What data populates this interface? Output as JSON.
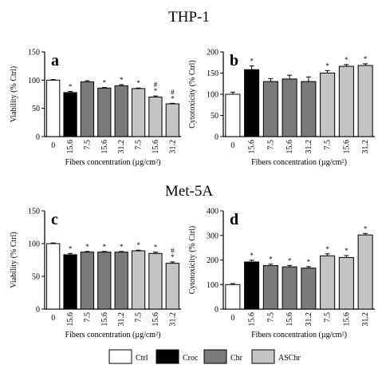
{
  "section_titles": [
    "THP-1",
    "Met-5A"
  ],
  "xlabel": "Fibers concentration (µg/cm²)",
  "legend": [
    {
      "label": "Ctrl",
      "color": "#ffffff"
    },
    {
      "label": "Croc",
      "color": "#000000"
    },
    {
      "label": "Chr",
      "color": "#7a7a7a"
    },
    {
      "label": "ASChr",
      "color": "#c4c4c4"
    }
  ],
  "chart_data": [
    {
      "type": "bar",
      "panel_letter": "a",
      "ylabel": "Viability (% Ctrl)",
      "ylim": [
        0,
        150
      ],
      "yticks": [
        0,
        50,
        100,
        150
      ],
      "categories": [
        "0",
        "15.6",
        "7.5",
        "15.6",
        "31.2",
        "7.5",
        "15.6",
        "31.2"
      ],
      "groups": [
        "Ctrl",
        "Croc",
        "Chr",
        "Chr",
        "Chr",
        "ASChr",
        "ASChr",
        "ASChr"
      ],
      "values": [
        100,
        78,
        97,
        86,
        90,
        85,
        70,
        58
      ],
      "errors": [
        1,
        2,
        2,
        1,
        2,
        1,
        2,
        1
      ],
      "annotations": [
        "",
        "*",
        "",
        "*",
        "*",
        "*",
        "#\n*",
        "#\n*"
      ]
    },
    {
      "type": "bar",
      "panel_letter": "b",
      "ylabel": "Cytotoxicity (% Ctrl)",
      "ylim": [
        0,
        200
      ],
      "yticks": [
        0,
        50,
        100,
        150,
        200
      ],
      "categories": [
        "0",
        "15.6",
        "7.5",
        "15.6",
        "31.2",
        "7.5",
        "15.6",
        "31.2"
      ],
      "groups": [
        "Ctrl",
        "Croc",
        "Chr",
        "Chr",
        "Chr",
        "ASChr",
        "ASChr",
        "ASChr"
      ],
      "values": [
        100,
        158,
        130,
        136,
        130,
        150,
        166,
        168
      ],
      "errors": [
        5,
        9,
        7,
        9,
        11,
        6,
        4,
        4
      ],
      "annotations": [
        "",
        "*",
        "",
        "",
        "",
        "*",
        "*",
        "*"
      ]
    },
    {
      "type": "bar",
      "panel_letter": "c",
      "ylabel": "Viability (% Ctrl)",
      "ylim": [
        0,
        150
      ],
      "yticks": [
        0,
        50,
        100,
        150
      ],
      "categories": [
        "0",
        "15.6",
        "7.5",
        "15.6",
        "31.2",
        "7.5",
        "15.6",
        "31.2"
      ],
      "groups": [
        "Ctrl",
        "Croc",
        "Chr",
        "Chr",
        "Chr",
        "ASChr",
        "ASChr",
        "ASChr"
      ],
      "values": [
        100,
        83,
        87,
        87,
        87,
        89,
        85,
        70
      ],
      "errors": [
        1,
        2,
        1,
        1,
        1,
        1,
        2,
        2
      ],
      "annotations": [
        "",
        "*",
        "*",
        "*",
        "*",
        "*",
        "*",
        "#\n*"
      ]
    },
    {
      "type": "bar",
      "panel_letter": "d",
      "ylabel": "Cytotoxicity (% Ctrl)",
      "ylim": [
        0,
        400
      ],
      "yticks": [
        0,
        100,
        200,
        300,
        400
      ],
      "categories": [
        "0",
        "15.6",
        "7.5",
        "15.6",
        "31.2",
        "7.5",
        "15.6",
        "31.2"
      ],
      "groups": [
        "Ctrl",
        "Croc",
        "Chr",
        "Chr",
        "Chr",
        "ASChr",
        "ASChr",
        "ASChr"
      ],
      "values": [
        100,
        192,
        177,
        172,
        167,
        217,
        210,
        302
      ],
      "errors": [
        4,
        7,
        6,
        6,
        6,
        8,
        8,
        6
      ],
      "annotations": [
        "",
        "*",
        "*",
        "*",
        "*",
        "*",
        "*",
        "*"
      ]
    }
  ]
}
